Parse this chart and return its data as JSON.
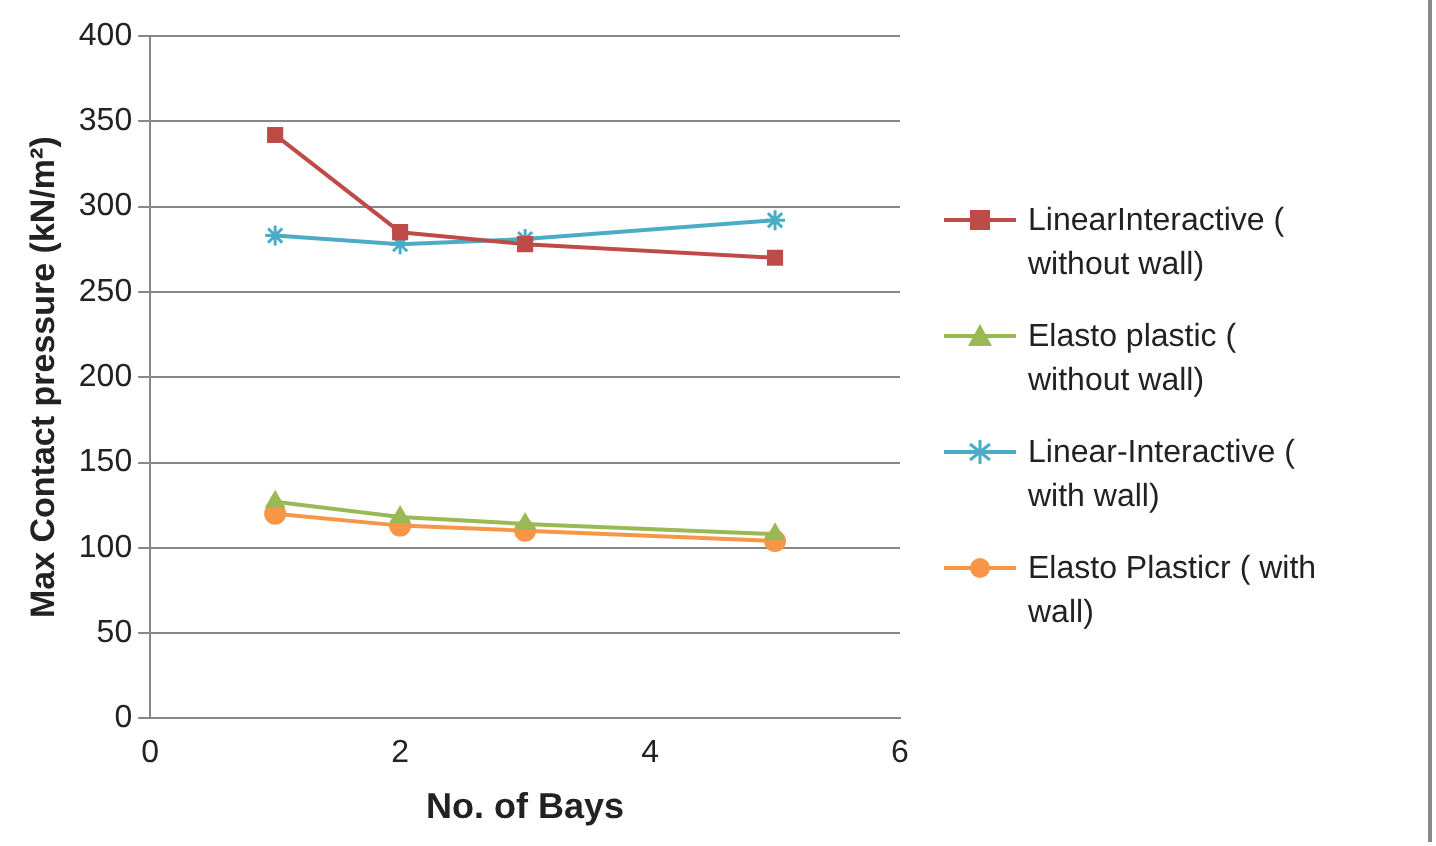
{
  "chart_data": {
    "type": "line",
    "xlabel": "No. of Bays",
    "ylabel": "Max Contact pressure (kN/m²)",
    "x": [
      1,
      2,
      3,
      5
    ],
    "xlim": [
      0,
      6
    ],
    "xticks": [
      0,
      2,
      4,
      6
    ],
    "ylim": [
      0,
      400
    ],
    "yticks": [
      0,
      50,
      100,
      150,
      200,
      250,
      300,
      350,
      400
    ],
    "grid": "y",
    "legend": "right",
    "series": [
      {
        "name": "LinearInteractive ( without wall)",
        "color": "#be4b48",
        "marker": "square",
        "values": [
          342,
          285,
          278,
          270
        ]
      },
      {
        "name": "Elasto plastic ( without wall)",
        "color": "#98b954",
        "marker": "triangle",
        "values": [
          127,
          118,
          114,
          108
        ]
      },
      {
        "name": "Linear-Interactive ( with wall)",
        "color": "#4bacc6",
        "marker": "cross",
        "values": [
          283,
          278,
          281,
          292
        ]
      },
      {
        "name": "Elasto Plasticr ( with wall)",
        "color": "#f79646",
        "marker": "circle",
        "values": [
          120,
          113,
          110,
          104
        ]
      }
    ]
  }
}
